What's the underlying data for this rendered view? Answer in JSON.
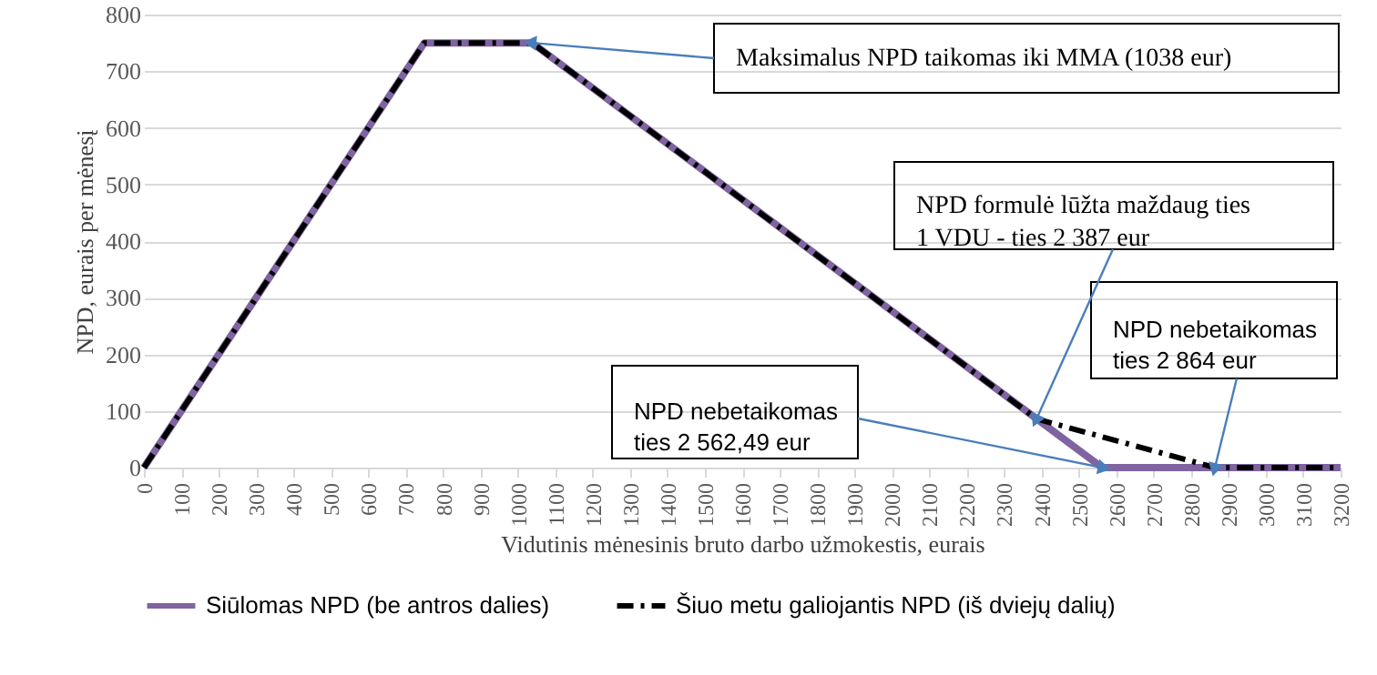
{
  "chart_data": {
    "type": "line",
    "xlabel": "Vidutinis mėnesinis bruto darbo užmokestis, eurais",
    "ylabel": "NPD, eurais per mėnesį",
    "xlim": [
      0,
      3200
    ],
    "xticks": [
      0,
      100,
      200,
      300,
      400,
      500,
      600,
      700,
      800,
      900,
      1000,
      1100,
      1200,
      1300,
      1400,
      1500,
      1600,
      1700,
      1800,
      1900,
      2000,
      2100,
      2200,
      2300,
      2400,
      2500,
      2600,
      2700,
      2800,
      2900,
      3000,
      3100,
      3200
    ],
    "ylim": [
      0,
      800
    ],
    "yticks": [
      0,
      100,
      200,
      300,
      400,
      500,
      600,
      700,
      800
    ],
    "grid": "y",
    "legend": "bottom",
    "series": [
      {
        "name": "Siūlomas NPD (be antros dalies)",
        "color": "#8064a2",
        "line_style": "solid",
        "x": [
          0,
          750,
          1038,
          2562.49,
          3200
        ],
        "values": [
          0,
          750,
          750,
          0,
          0
        ]
      },
      {
        "name": "Šiuo metu galiojantis NPD (iš dviejų dalių)",
        "color": "#000000",
        "line_style": "dashed",
        "x": [
          0,
          750,
          1038,
          2387,
          2864,
          3200
        ],
        "values": [
          0,
          750,
          750,
          86,
          0,
          0
        ]
      }
    ],
    "annotations": [
      {
        "text": "Maksimalus NPD taikomas iki MMA (1038 eur)",
        "x": 1038,
        "y": 750
      },
      {
        "text": "NPD formulė lūžta maždaug ties\n1 VDU - ties 2 387 eur",
        "x": 2387,
        "y": 86
      },
      {
        "text": "NPD nebetaikomas\nties 2 562,49 eur",
        "x": 2562.49,
        "y": 0
      },
      {
        "text": "NPD nebetaikomas\nties 2 864 eur",
        "x": 2864,
        "y": 0
      }
    ]
  }
}
